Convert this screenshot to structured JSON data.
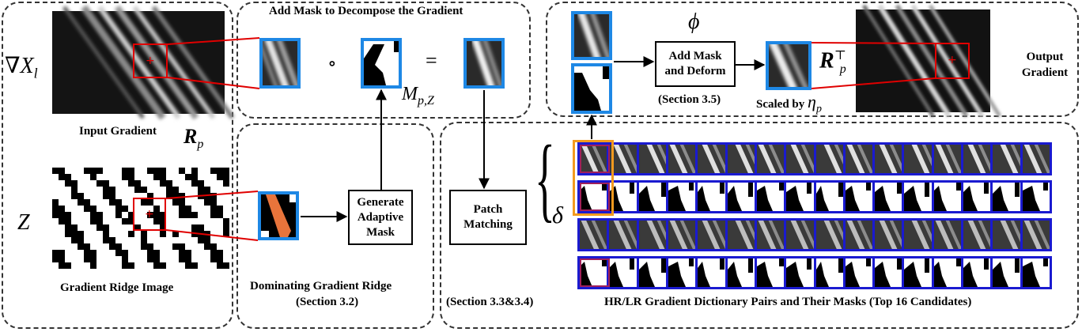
{
  "input": {
    "grad_symbol": "∇X",
    "grad_sub": "l",
    "input_label": "Input Gradient",
    "r_symbol": "R",
    "r_sub": "p",
    "z_symbol": "Z",
    "ridge_label": "Gradient Ridge Image"
  },
  "decompose": {
    "title": "Add Mask to Decompose the Gradient",
    "circ": "∘",
    "equals": "=",
    "m_symbol": "M",
    "m_sub": "p,Z"
  },
  "dominating": {
    "generate_label": "Generate Adaptive Mask",
    "caption_line1": "Dominating Gradient Ridge",
    "caption_line2": "(Section 3.2)"
  },
  "matching": {
    "box_label": "Patch Matching",
    "caption": "(Section 3.3&3.4)"
  },
  "output": {
    "phi": "ϕ",
    "deform_label": "Add Mask and Deform",
    "deform_section": "(Section 3.5)",
    "scaled_label": "Scaled by",
    "eta_symbol": "η",
    "eta_sub": "p",
    "rpt_symbol": "R",
    "rpt_sup": "⊤",
    "rpt_sub": "p",
    "output_label": "Output Gradient"
  },
  "dictionary": {
    "delta": "δ",
    "brace": "{",
    "caption": "HR/LR Gradient Dictionary Pairs and Their Masks (Top 16 Candidates)",
    "strips": [
      "hr-gradient",
      "hr-mask",
      "lr-gradient",
      "lr-mask"
    ],
    "candidates": 16
  },
  "colors": {
    "patch_border": "#1e88e5",
    "strip_border": "#1a1ad0",
    "red_box": "#e00000",
    "orange_box": "#f39a1e",
    "purple_box": "#a0205a",
    "ridge_orange": "#e8743b"
  }
}
